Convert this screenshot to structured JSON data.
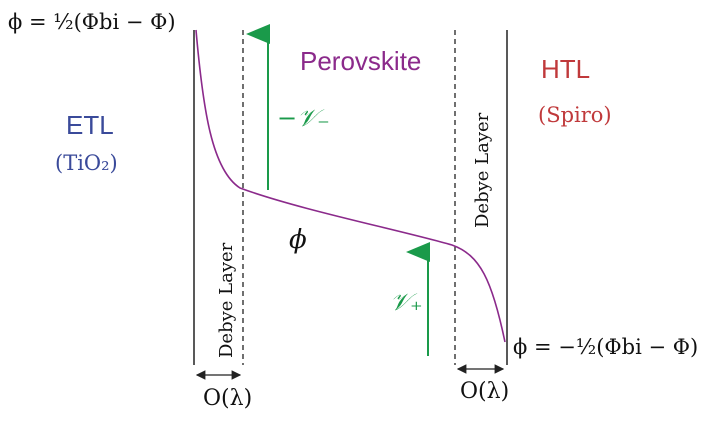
{
  "labels": {
    "perovskite": "Perovskite",
    "etl": "ETL",
    "etl_material": "(TiO₂)",
    "htl": "HTL",
    "htl_material": "(Spiro)",
    "phi": "ϕ",
    "phi_left": "ϕ = ½(Φbi − Φ)",
    "phi_right": "ϕ = −½(Φbi − Φ)",
    "v_minus": "−𝒱₋",
    "v_plus": "𝒱₊",
    "debye_left": "Debye Layer",
    "debye_right": "Debye Layer",
    "order_left": "O(λ)",
    "order_right": "O(λ)"
  },
  "colors": {
    "etl": "#3a4a9a",
    "htl": "#c0393b",
    "perovskite": "#8b2a8b",
    "potential_curve": "#8b2a8b",
    "arrows": "#1a9a4a",
    "lines": "#222222"
  }
}
